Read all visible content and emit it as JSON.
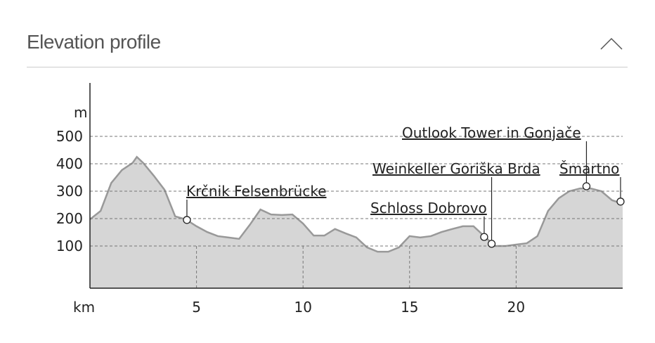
{
  "header": {
    "title": "Elevation profile"
  },
  "chart_data": {
    "type": "area",
    "y_label": "m",
    "x_label": "km",
    "x": [
      0,
      0.5,
      1,
      1.5,
      2,
      2.2,
      2.5,
      3,
      3.5,
      4,
      4.5,
      5,
      5.5,
      6,
      6.5,
      7,
      7.5,
      8,
      8.5,
      9,
      9.5,
      10,
      10.5,
      11,
      11.5,
      12,
      12.5,
      13,
      13.5,
      14,
      14.5,
      15,
      15.5,
      16,
      16.5,
      17,
      17.5,
      18,
      18.5,
      19,
      19.5,
      20,
      20.5,
      21,
      21.5,
      22,
      22.5,
      23,
      23.5,
      24,
      24.5,
      25
    ],
    "series": [
      {
        "color": "#d6d6d6",
        "values": [
          197,
          228,
          330,
          377,
          403,
          425,
          403,
          356,
          305,
          208,
          197,
          172,
          151,
          136,
          131,
          126,
          177,
          233,
          215,
          213,
          215,
          182,
          138,
          138,
          162,
          146,
          131,
          95,
          79,
          79,
          95,
          136,
          131,
          136,
          151,
          162,
          172,
          172,
          136,
          100,
          100,
          105,
          110,
          136,
          228,
          274,
          300,
          310,
          310,
          300,
          267,
          254
        ]
      }
    ],
    "xlim": [
      0,
      25
    ],
    "ylim": [
      -54,
      695
    ],
    "xticks": [
      5,
      10,
      15,
      20
    ],
    "yticks": [
      100,
      200,
      300,
      400,
      500
    ],
    "grid": true,
    "waypoints": [
      {
        "name": "Krčnik Felsenbrücke",
        "x": 4.55,
        "elevation": 195
      },
      {
        "name": "Schloss Dobrovo",
        "x": 18.5,
        "elevation": 133
      },
      {
        "name": "Weinkeller Goriška Brda",
        "x": 18.85,
        "elevation": 108
      },
      {
        "name": "Outlook Tower in Gonjače",
        "x": 23.3,
        "elevation": 318
      },
      {
        "name": "Šmartno",
        "x": 24.9,
        "elevation": 262
      }
    ]
  }
}
